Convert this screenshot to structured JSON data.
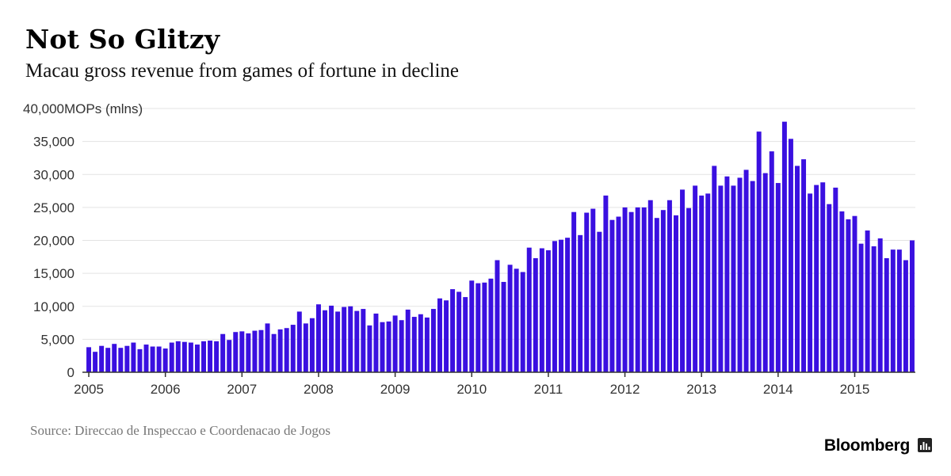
{
  "header": {
    "title": "Not So Glitzy",
    "subtitle": "Macau gross revenue from games of fortune in decline"
  },
  "footer": {
    "source": "Source: Direccao de Inspeccao e Coordenacao de Jogos",
    "brand": "Bloomberg",
    "brand_icon": "bar-chart-icon"
  },
  "colors": {
    "bar": "#3a10e0",
    "grid": "#e3e3e3",
    "axis": "#333333"
  },
  "chart_data": {
    "type": "bar",
    "title": "Not So Glitzy",
    "subtitle": "Macau gross revenue from games of fortune in decline",
    "ylabel": "MOPs (mlns)",
    "ylim": [
      0,
      40000
    ],
    "yticks": [
      0,
      5000,
      10000,
      15000,
      20000,
      25000,
      30000,
      35000,
      40000
    ],
    "ytick_labels": [
      "0",
      "5,000",
      "10,000",
      "15,000",
      "20,000",
      "25,000",
      "30,000",
      "35,000",
      "40,000"
    ],
    "xtick_labels": [
      "2005",
      "2006",
      "2007",
      "2008",
      "2009",
      "2010",
      "2011",
      "2012",
      "2013",
      "2014",
      "2015"
    ],
    "start": "2005-01",
    "frequency": "monthly",
    "grid": true,
    "series": [
      {
        "values": [
          3800,
          3100,
          4000,
          3700,
          4300,
          3700,
          4000,
          4500,
          3500,
          4200,
          3900,
          3900,
          3600,
          4500,
          4700,
          4600,
          4500,
          4200,
          4700,
          4800,
          4700,
          5800,
          4900,
          6100,
          6200,
          5900,
          6300,
          6400,
          7400,
          5800,
          6500,
          6700,
          7200,
          9200,
          7400,
          8200,
          10300,
          9400,
          10100,
          9200,
          9900,
          10000,
          9300,
          9600,
          7100,
          8900,
          7600,
          7700,
          8600,
          7900,
          9500,
          8400,
          8800,
          8300,
          9600,
          11200,
          10900,
          12600,
          12200,
          11400,
          13900,
          13500,
          13600,
          14200,
          17000,
          13700,
          16300,
          15700,
          15200,
          18900,
          17300,
          18800,
          18500,
          19900,
          20100,
          20400,
          24300,
          20800,
          24200,
          24800,
          21300,
          26800,
          23100,
          23600,
          25000,
          24300,
          25000,
          25000,
          26100,
          23400,
          24600,
          26100,
          23800,
          27700,
          24900,
          28300,
          26800,
          27100,
          31300,
          28300,
          29700,
          28300,
          29500,
          30700,
          29000,
          36500,
          30200,
          33500,
          28700,
          38000,
          35400,
          31300,
          32300,
          27100,
          28400,
          28800,
          25500,
          28000,
          24400,
          23200,
          23700,
          19500,
          21500,
          19100,
          20300,
          17300,
          18600,
          18600,
          17000,
          20000
        ]
      }
    ]
  }
}
